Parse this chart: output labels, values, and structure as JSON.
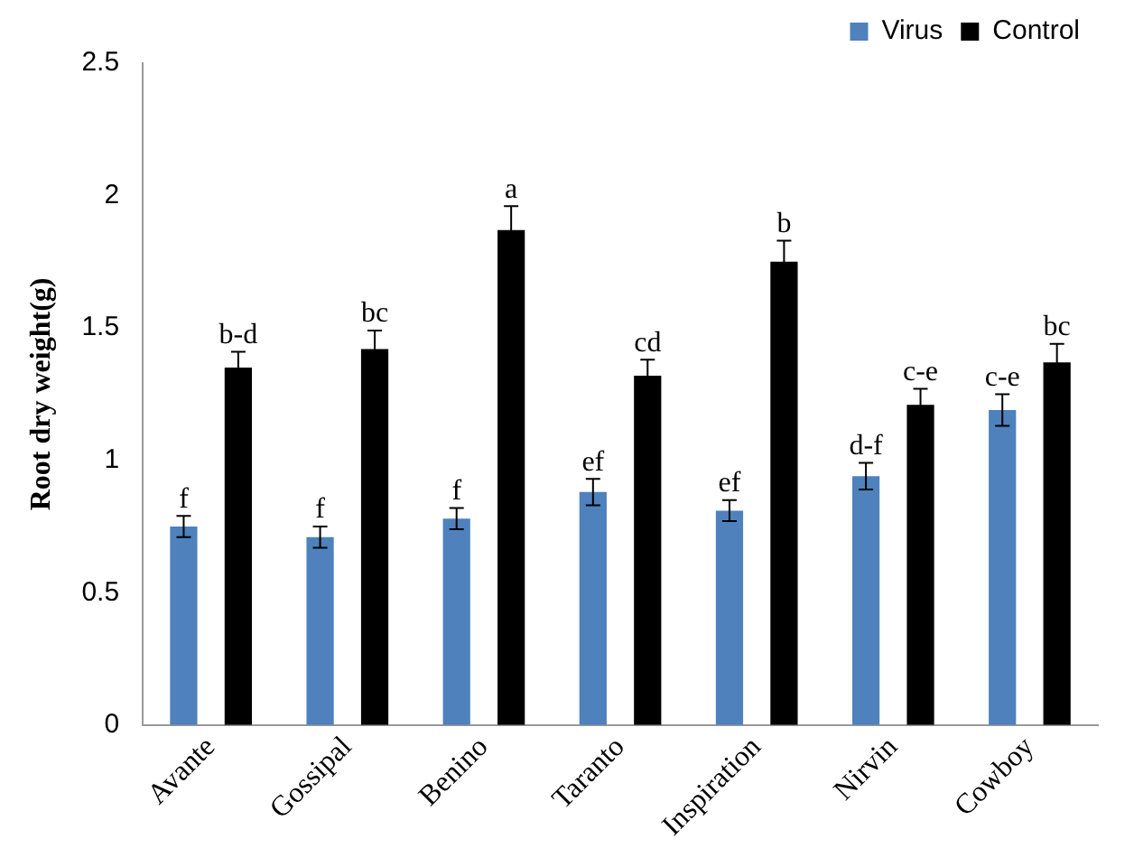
{
  "chart_data": {
    "type": "bar",
    "ylabel": "Root dry weight(g)",
    "categories": [
      "Avante",
      "Gossipal",
      "Benino",
      "Taranto",
      "Inspiration",
      "Nirvin",
      "Cowboy"
    ],
    "series": [
      {
        "name": "Virus",
        "color": "#4f81bd",
        "values": [
          0.75,
          0.71,
          0.78,
          0.88,
          0.81,
          0.94,
          1.19
        ],
        "errors": [
          0.04,
          0.04,
          0.04,
          0.05,
          0.04,
          0.05,
          0.06
        ],
        "value_labels": [
          "f",
          "f",
          "f",
          "ef",
          "ef",
          "d-f",
          "c-e"
        ]
      },
      {
        "name": "Control",
        "color": "#000000",
        "values": [
          1.35,
          1.42,
          1.87,
          1.32,
          1.75,
          1.21,
          1.37
        ],
        "errors": [
          0.06,
          0.07,
          0.09,
          0.06,
          0.08,
          0.06,
          0.07
        ],
        "value_labels": [
          "b-d",
          "bc",
          "a",
          "cd",
          "b",
          "c-e",
          "bc"
        ]
      }
    ],
    "ylim": [
      0,
      2.5
    ],
    "yticks": [
      0,
      0.5,
      1,
      1.5,
      2,
      2.5
    ],
    "grid": false,
    "legend": "top right"
  }
}
